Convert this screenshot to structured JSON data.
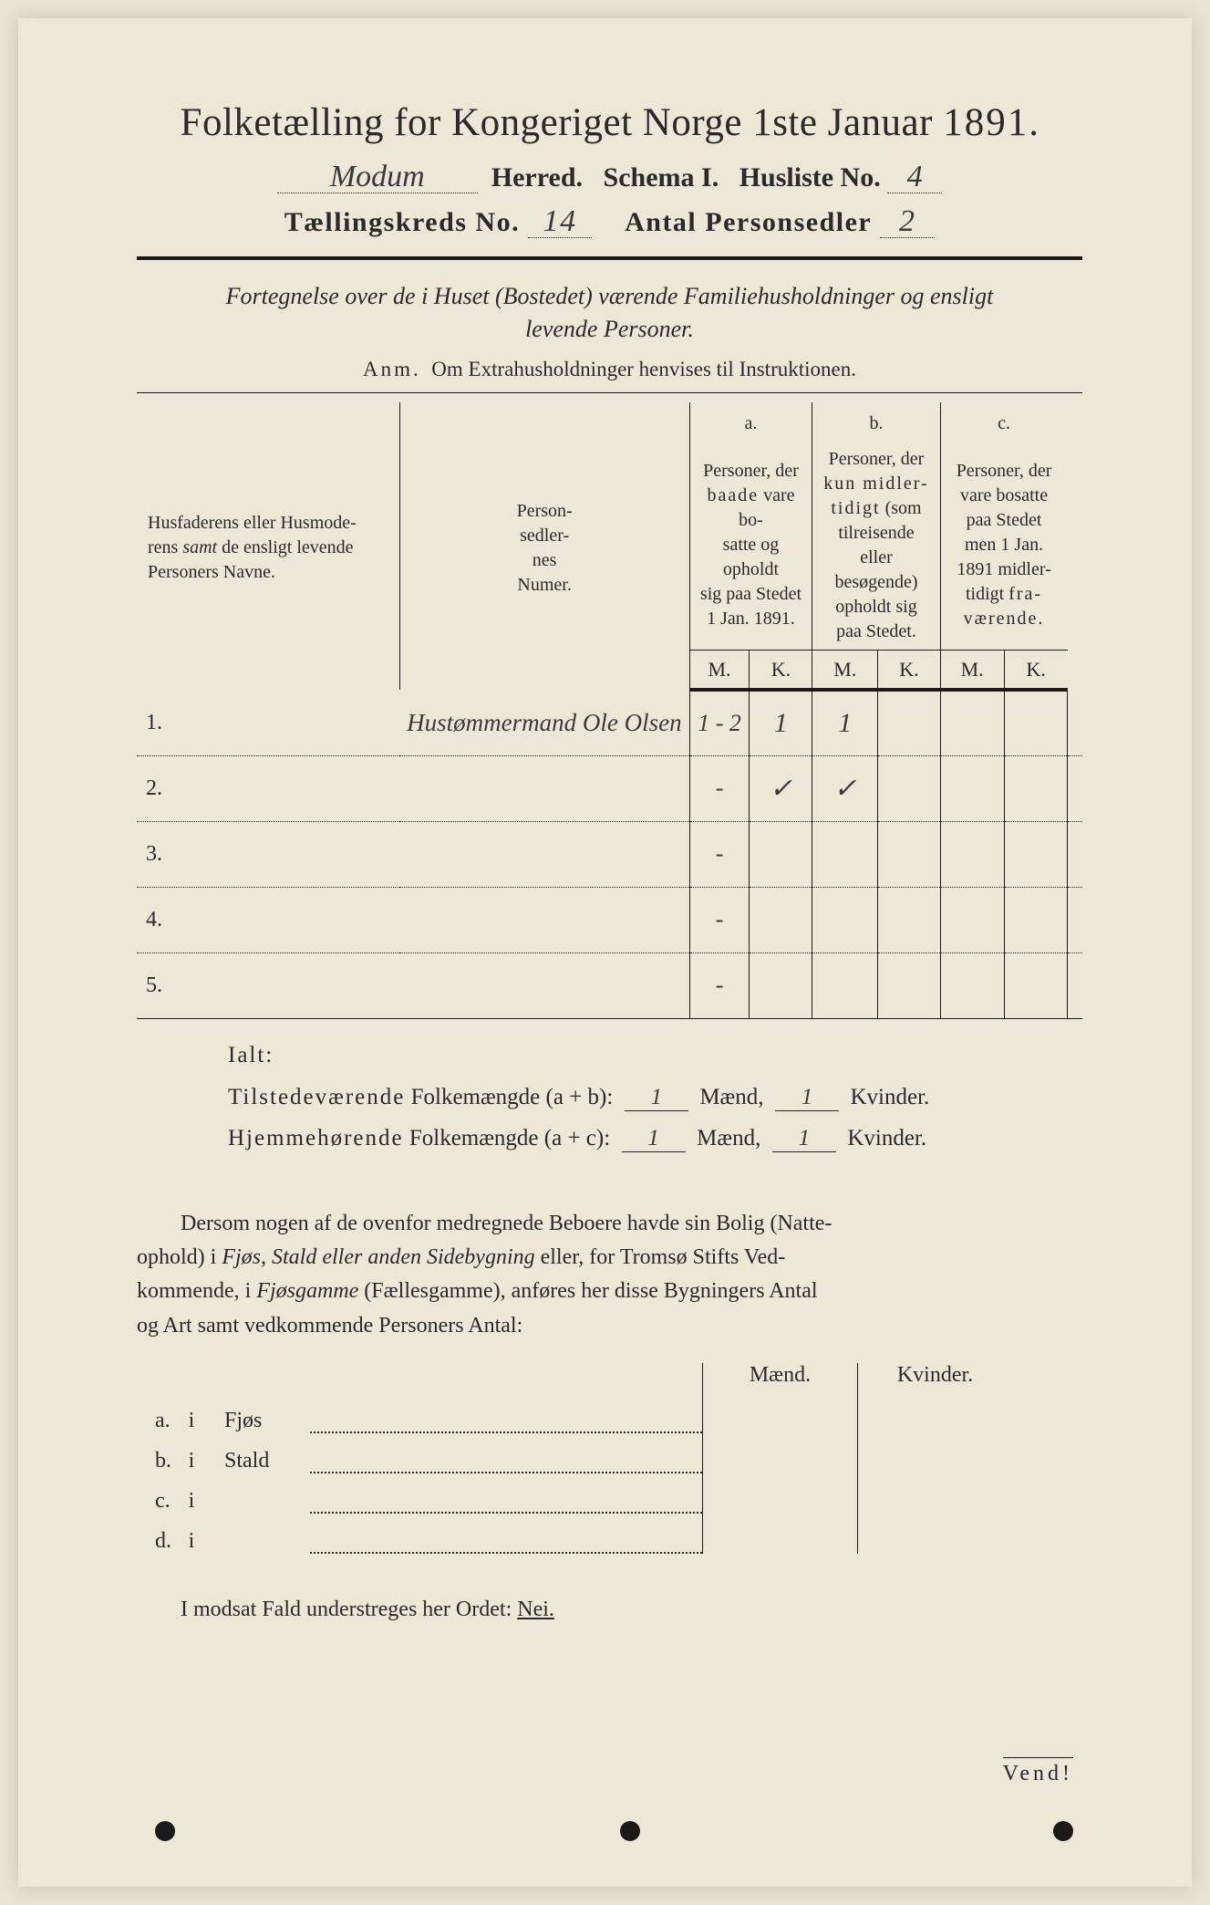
{
  "header": {
    "title_prefix": "Folketælling for Kongeriget Norge 1ste Januar",
    "year": "1891",
    "herred_value": "Modum",
    "herred_label": "Herred.",
    "schema_label": "Schema I.",
    "husliste_label": "Husliste No.",
    "husliste_value": "4",
    "kreds_label": "Tællingskreds No.",
    "kreds_value": "14",
    "sedler_label": "Antal Personsedler",
    "sedler_value": "2"
  },
  "fortegnelse": {
    "line1": "Fortegnelse over de i Huset (Bostedet) værende Familiehusholdninger og ensligt",
    "line2": "levende Personer.",
    "anm_label": "Anm.",
    "anm_text": "Om Extrahusholdninger henvises til Instruktionen."
  },
  "table": {
    "col_name_l1": "Husfaderens eller Husmode-",
    "col_name_l2_pre": "rens ",
    "col_name_l2_em": "samt",
    "col_name_l2_post": " de ensligt levende",
    "col_name_l3": "Personers Navne.",
    "col_num_l1": "Person-",
    "col_num_l2": "sedler-",
    "col_num_l3": "nes",
    "col_num_l4": "Numer.",
    "a_label": "a.",
    "a_l1": "Personer, der",
    "a_l2_pre": "baade",
    "a_l2_post": " vare bo-",
    "a_l3": "satte og opholdt",
    "a_l4": "sig paa Stedet",
    "a_l5": "1 Jan. 1891.",
    "b_label": "b.",
    "b_l1": "Personer, der",
    "b_l2_pre": "kun midler-",
    "b_l3_pre": "tidigt",
    "b_l3_post": " (som",
    "b_l4": "tilreisende",
    "b_l5": "eller",
    "b_l6": "besøgende)",
    "b_l7": "opholdt sig",
    "b_l8": "paa Stedet.",
    "c_label": "c.",
    "c_l1": "Personer, der",
    "c_l2": "vare bosatte",
    "c_l3": "paa Stedet",
    "c_l4": "men 1 Jan.",
    "c_l5": "1891 midler-",
    "c_l6_pre": "tidigt ",
    "c_l6_sp": "fra-",
    "c_l7_sp": "værende.",
    "M": "M.",
    "K": "K.",
    "rows": [
      {
        "n": "1.",
        "name": "Hustømmermand Ole Olsen",
        "num": "1 - 2",
        "aM": "1",
        "aK": "1",
        "bM": "",
        "bK": "",
        "cM": "",
        "cK": ""
      },
      {
        "n": "2.",
        "name": "",
        "num": "-",
        "aM": "✓",
        "aK": "✓",
        "bM": "",
        "bK": "",
        "cM": "",
        "cK": ""
      },
      {
        "n": "3.",
        "name": "",
        "num": "-",
        "aM": "",
        "aK": "",
        "bM": "",
        "bK": "",
        "cM": "",
        "cK": ""
      },
      {
        "n": "4.",
        "name": "",
        "num": "-",
        "aM": "",
        "aK": "",
        "bM": "",
        "bK": "",
        "cM": "",
        "cK": ""
      },
      {
        "n": "5.",
        "name": "",
        "num": "-",
        "aM": "",
        "aK": "",
        "bM": "",
        "bK": "",
        "cM": "",
        "cK": ""
      }
    ]
  },
  "ialt": {
    "label": "Ialt:",
    "row1_sp": "Tilstedeværende",
    "row1_rest": " Folkemængde (a + b):",
    "row2_sp": "Hjemmehørende",
    "row2_rest": " Folkemængde (a + c):",
    "maend": "Mænd,",
    "kvinder": "Kvinder.",
    "v1m": "1",
    "v1k": "1",
    "v2m": "1",
    "v2k": "1"
  },
  "dersom": {
    "p1": "Dersom nogen af de ovenfor medregnede Beboere havde sin Bolig (Natte-",
    "p2_pre": "ophold) i ",
    "p2_em": "Fjøs, Stald eller anden Sidebygning",
    "p2_post": " eller, for Tromsø Stifts Ved-",
    "p3_pre": "kommende, i ",
    "p3_em": "Fjøsgamme",
    "p3_post": " (Fællesgamme), anføres her disse Bygningers Antal",
    "p4": "og Art samt vedkommende Personers Antal:"
  },
  "fjos": {
    "maend": "Mænd.",
    "kvinder": "Kvinder.",
    "rows": [
      {
        "l": "a.",
        "i": "i",
        "w": "Fjøs"
      },
      {
        "l": "b.",
        "i": "i",
        "w": "Stald"
      },
      {
        "l": "c.",
        "i": "i",
        "w": ""
      },
      {
        "l": "d.",
        "i": "i",
        "w": ""
      }
    ]
  },
  "modsat": {
    "text_pre": "I modsat Fald understreges her Ordet: ",
    "nei": "Nei."
  },
  "vend": "Vend!",
  "colors": {
    "paper": "#ece7d6",
    "ink": "#2a2a2a",
    "rule": "#1a1a1a"
  }
}
